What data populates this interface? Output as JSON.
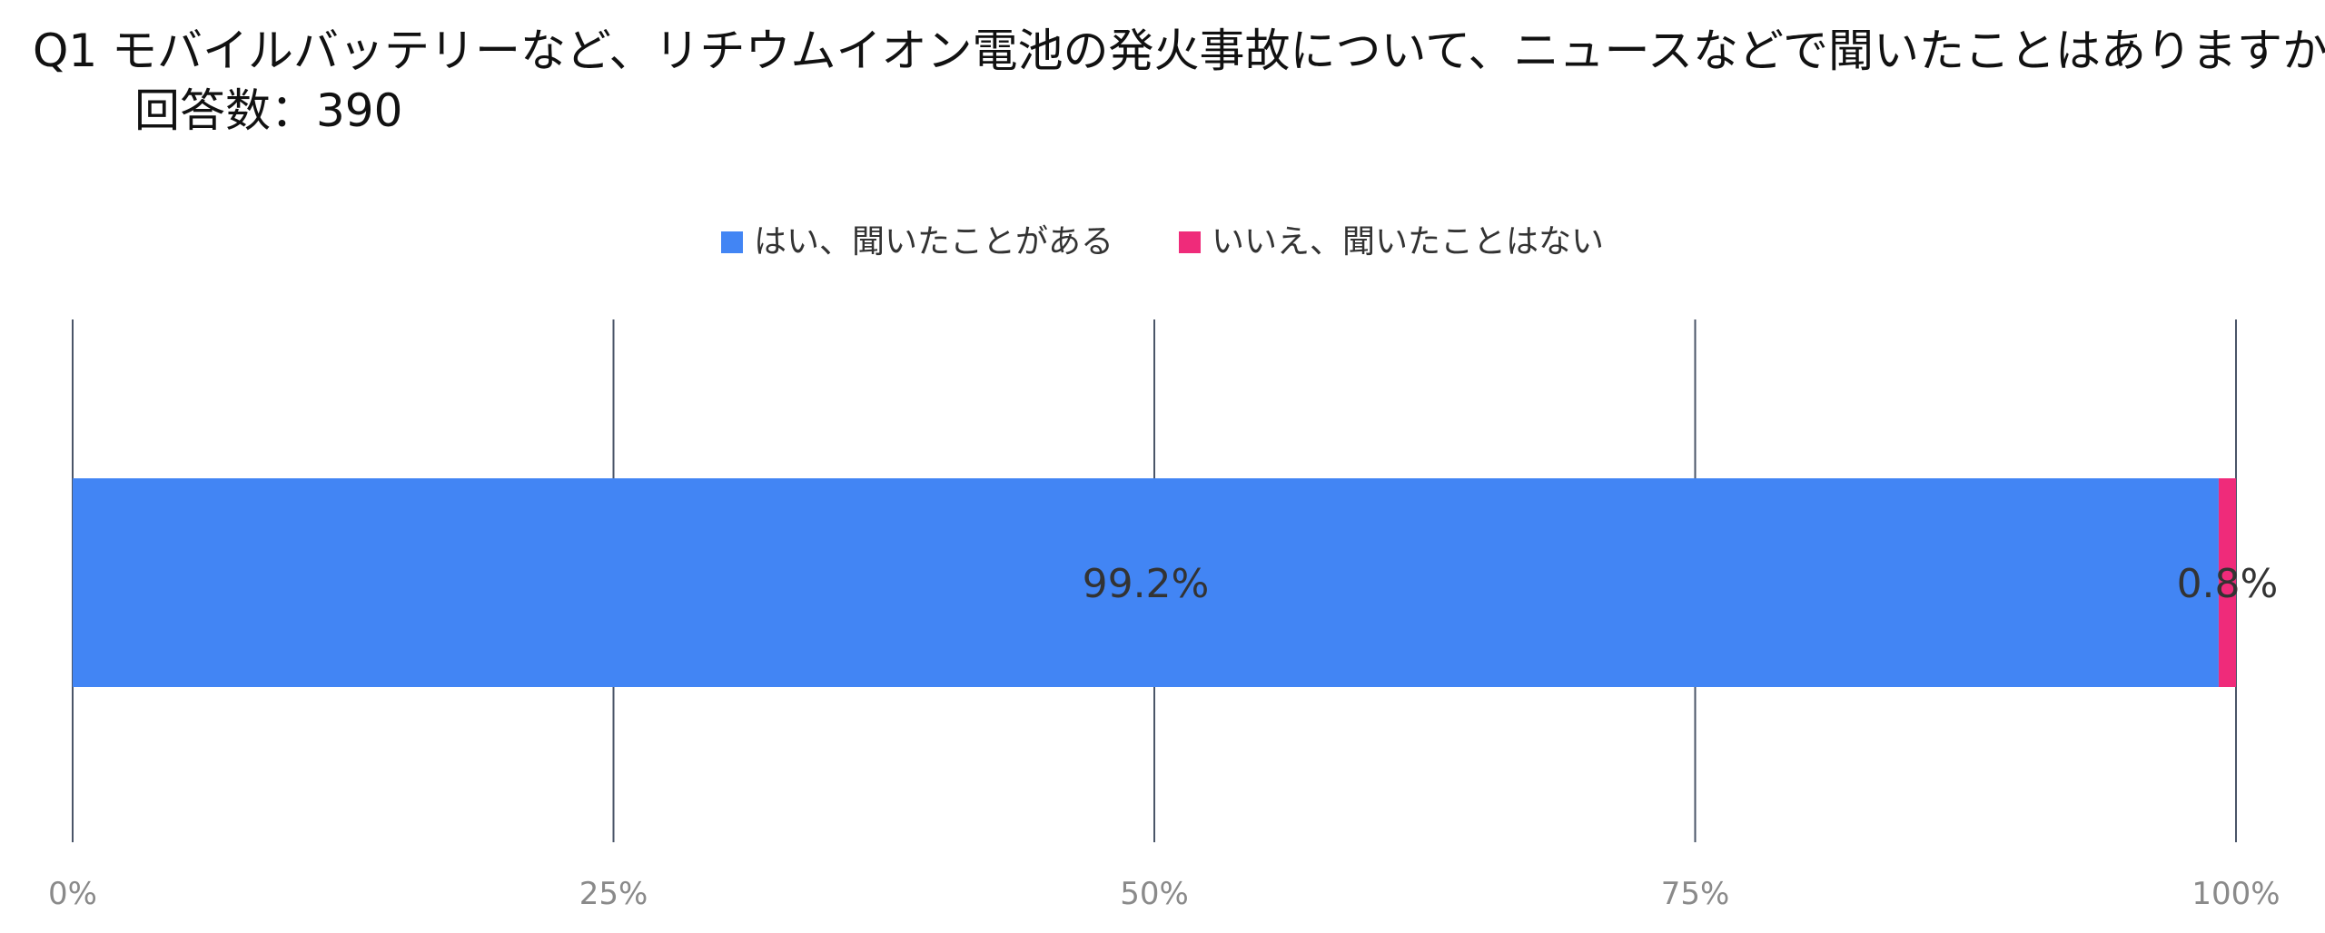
{
  "title": {
    "line1": "Q1 モバイルバッテリーなど、リチウムイオン電池の発火事故について、ニュースなどで聞いたことはありますか？",
    "line2": "回答数：390"
  },
  "chart_data": {
    "type": "bar",
    "orientation": "horizontal",
    "stacked": "percent",
    "series": [
      {
        "name": "はい、聞いたことがある",
        "values": [
          99.2
        ],
        "label": "99.2%",
        "color": "#4285f4"
      },
      {
        "name": "いいえ、聞いたことはない",
        "values": [
          0.8
        ],
        "label": "0.8%",
        "color": "#ef2b7a"
      }
    ],
    "xlim": [
      0,
      100
    ],
    "x_ticks": [
      "0%",
      "25%",
      "50%",
      "75%",
      "100%"
    ],
    "grid": true,
    "legend_position": "top-center"
  },
  "colors": {
    "gridline": "#4a5568",
    "tick_text": "#8a8a8a",
    "label_text": "#333333"
  }
}
